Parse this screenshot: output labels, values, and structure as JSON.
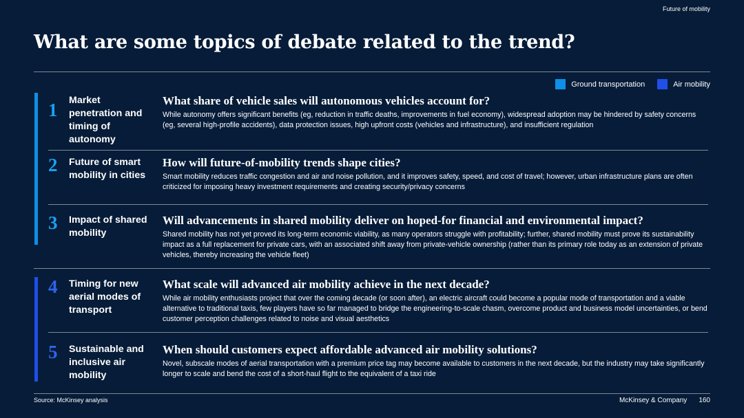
{
  "header": {
    "section_tag": "Future of mobility"
  },
  "title": "What are some topics of debate related to the trend?",
  "legend": {
    "items": [
      {
        "label": "Ground transportation",
        "color": "#0f8fe6"
      },
      {
        "label": "Air mobility",
        "color": "#1f4fe8"
      }
    ]
  },
  "colors": {
    "ground": "#0f8fe6",
    "air": "#1f4fe8",
    "number_ground": "#1aa0f2",
    "number_air": "#2f63f0",
    "background": "#061c38",
    "rule": "#7e8a9a"
  },
  "rows": [
    {
      "number": "1",
      "label": "Market penetration and timing of autonomy",
      "question": "What share of vehicle sales will autonomous vehicles account for?",
      "text": "While autonomy offers significant benefits (eg, reduction in traffic deaths, improvements in fuel economy), widespread adoption may be hindered by safety concerns (eg, several high-profile accidents), data protection issues, high upfront costs (vehicles and infrastructure), and insufficient regulation"
    },
    {
      "number": "2",
      "label": "Future of smart mobility in cities",
      "question": "How will future-of-mobility trends shape cities?",
      "text": "Smart mobility reduces traffic congestion and air and noise pollution, and it improves safety, speed, and cost of travel; however, urban infrastructure plans are often criticized for imposing heavy investment requirements and creating security/privacy concerns"
    },
    {
      "number": "3",
      "label": "Impact of shared mobility",
      "question": "Will advancements in shared mobility deliver on hoped-for financial and environmental impact?",
      "text": "Shared mobility has not yet proved its long-term economic viability, as many operators struggle with profitability; further, shared mobility must prove its sustainability impact as a full replacement for private cars, with an associated shift away from private-vehicle ownership (rather than its primary role today as an extension of private vehicles, thereby increasing the vehicle fleet)"
    },
    {
      "number": "4",
      "label": "Timing for new aerial modes of transport",
      "question": "What scale will advanced air mobility achieve in the next decade?",
      "text": "While air mobility enthusiasts project that over the coming decade (or soon after), an electric aircraft could become a popular mode of transportation and a viable alternative to traditional taxis, few players have so far managed to bridge the engineering-to-scale chasm, overcome product and business model uncertainties, or bend customer perception challenges related to noise and visual aesthetics"
    },
    {
      "number": "5",
      "label": "Sustainable and inclusive air mobility",
      "question": "When should customers expect affordable advanced air mobility solutions?",
      "text": "Novel, subscale modes of aerial transportation with a premium price tag may become available to customers in the next decade, but the industry may take significantly longer to scale and bend the cost of a short-haul flight to the equivalent of a taxi ride"
    }
  ],
  "footer": {
    "source": "Source: McKinsey analysis",
    "company": "McKinsey & Company",
    "page_number": "160"
  }
}
